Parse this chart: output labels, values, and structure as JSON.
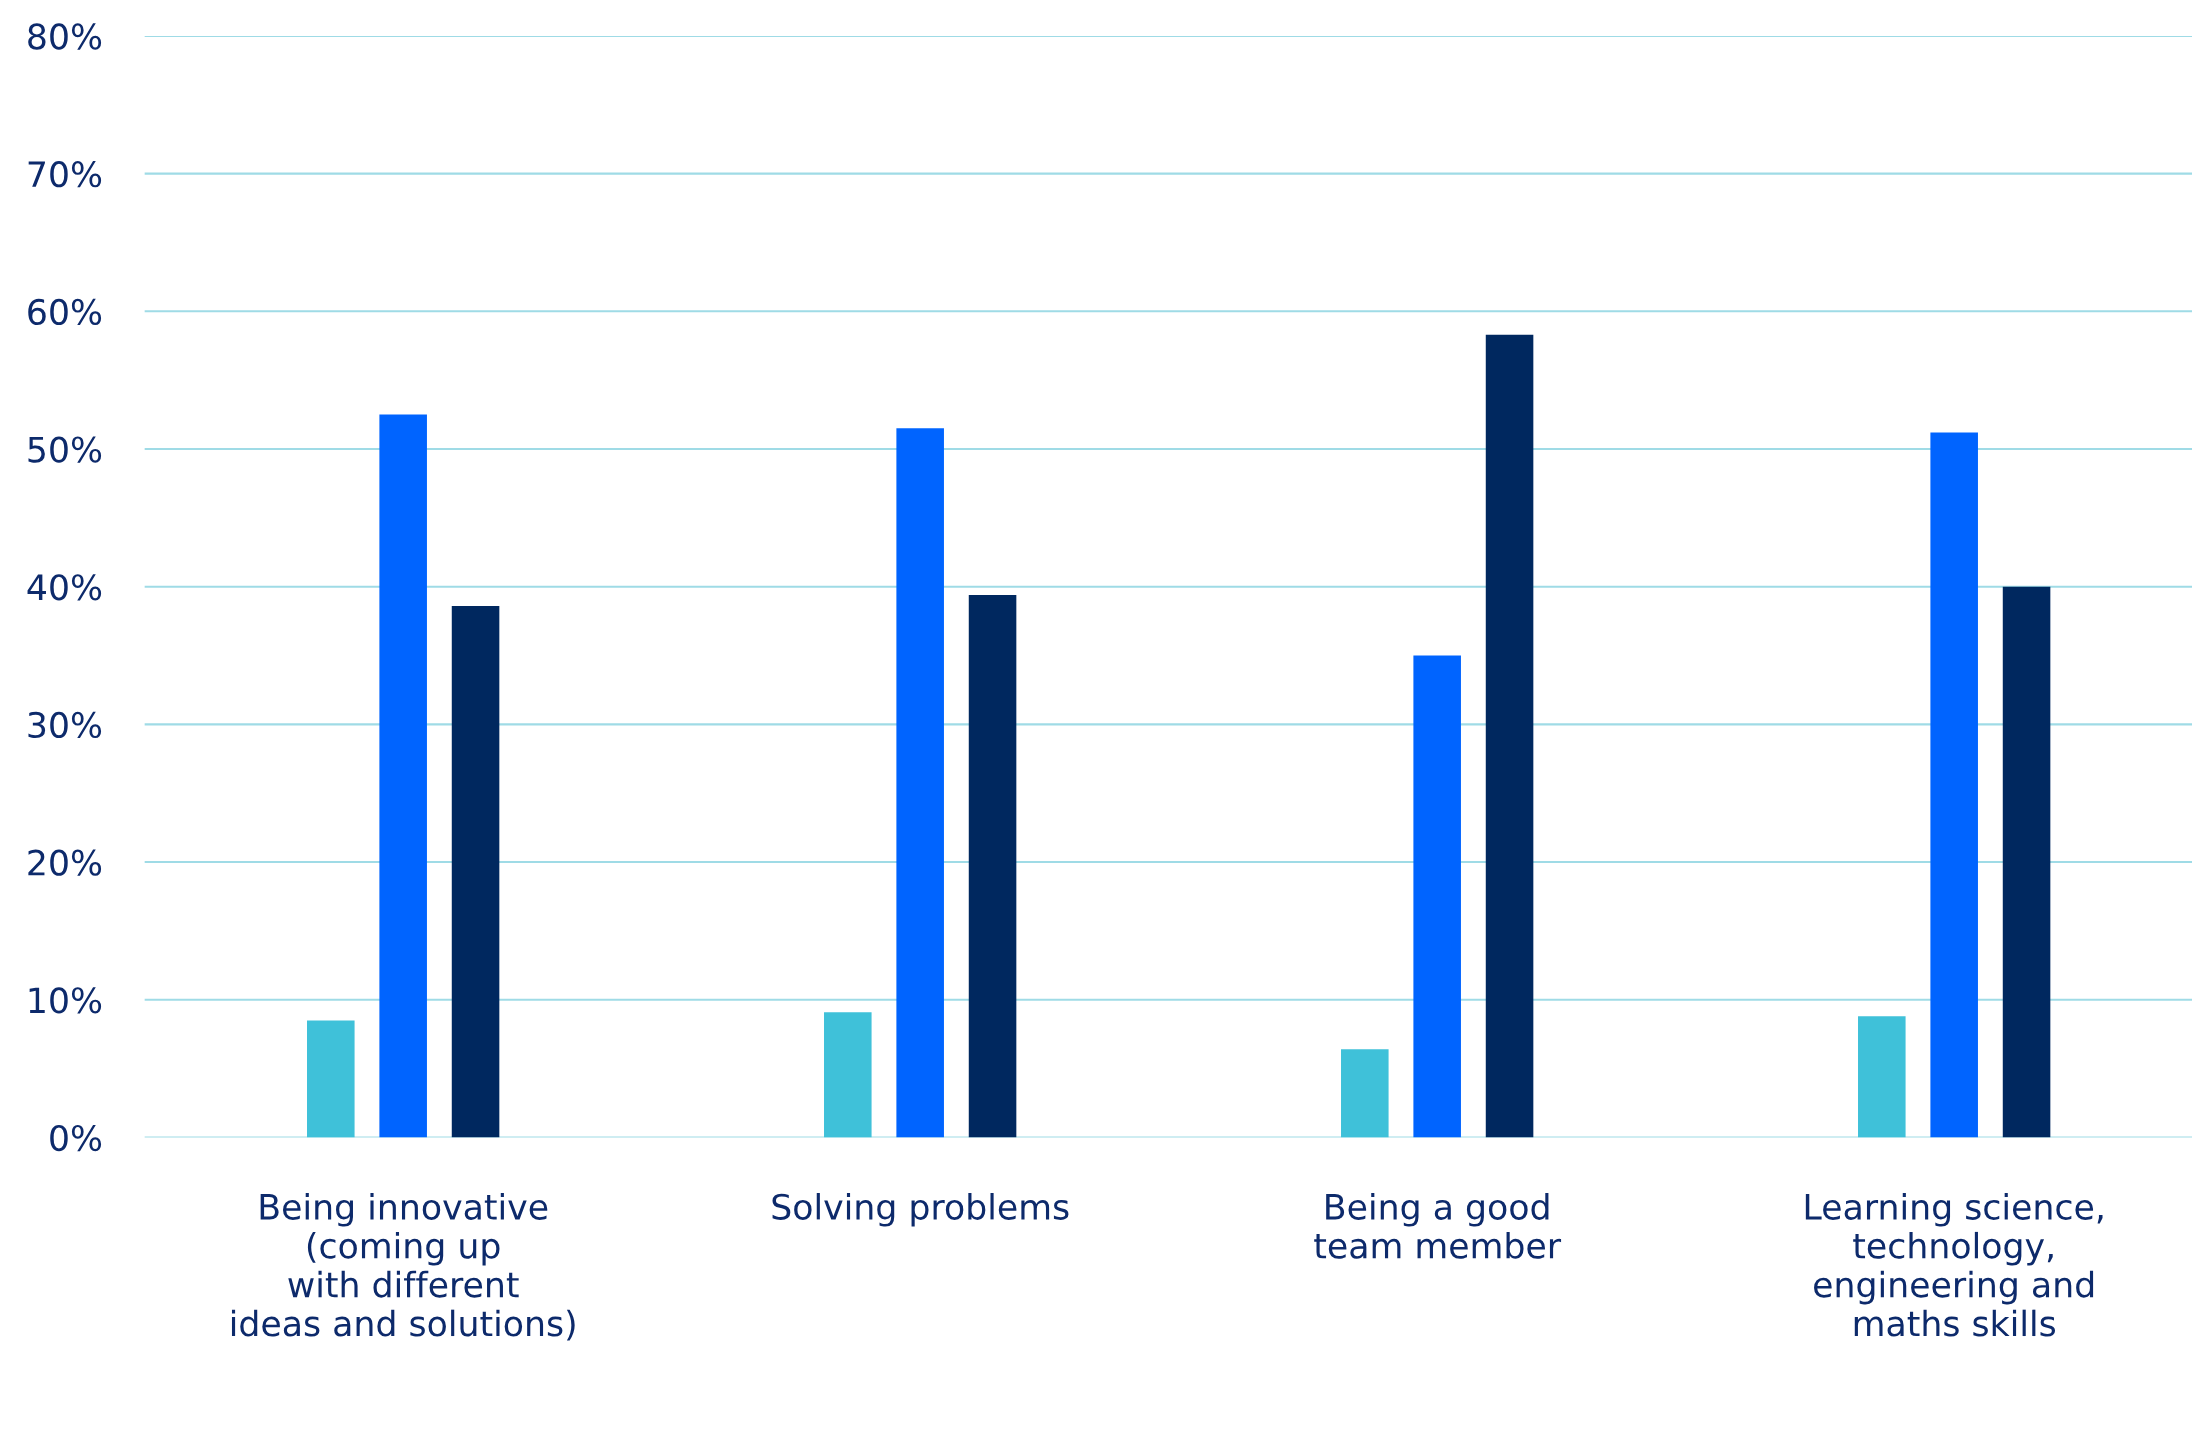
{
  "chart_data": {
    "type": "bar",
    "categories": [
      "Being innovative\n(coming up\nwith different\nideas and solutions)",
      "Solving problems",
      "Being a good\nteam member",
      "Learning science,\ntechnology,\nengineering and\nmaths skills"
    ],
    "series": [
      {
        "color": "#3fc1d9",
        "values": [
          8.5,
          9.1,
          6.4,
          8.8
        ]
      },
      {
        "color": "#0064ff",
        "values": [
          52.5,
          51.5,
          35.0,
          51.2
        ]
      },
      {
        "color": "#00285f",
        "values": [
          38.6,
          39.4,
          58.3,
          40.0
        ]
      }
    ],
    "ylim": [
      0,
      80
    ],
    "yticks": [
      {
        "value": 0,
        "label": "0%"
      },
      {
        "value": 10,
        "label": "10%"
      },
      {
        "value": 20,
        "label": "20%"
      },
      {
        "value": 30,
        "label": "30%"
      },
      {
        "value": 40,
        "label": "40%"
      },
      {
        "value": 50,
        "label": "50%"
      },
      {
        "value": 60,
        "label": "60%"
      },
      {
        "value": 70,
        "label": "70%"
      },
      {
        "value": 80,
        "label": "80%"
      }
    ],
    "grid": "y",
    "legend": false
  }
}
